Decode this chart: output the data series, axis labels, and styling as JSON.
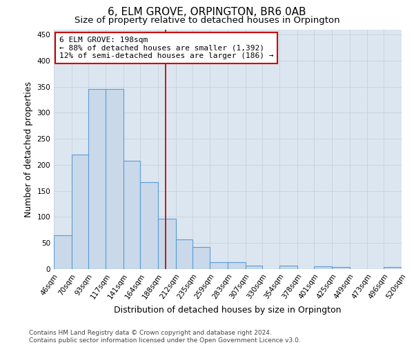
{
  "title": "6, ELM GROVE, ORPINGTON, BR6 0AB",
  "subtitle": "Size of property relative to detached houses in Orpington",
  "xlabel": "Distribution of detached houses by size in Orpington",
  "ylabel": "Number of detached properties",
  "bin_edges": [
    46,
    70,
    93,
    117,
    141,
    164,
    188,
    212,
    235,
    259,
    283,
    307,
    330,
    354,
    378,
    401,
    425,
    449,
    473,
    496,
    520
  ],
  "bar_heights": [
    65,
    220,
    345,
    345,
    208,
    167,
    97,
    57,
    42,
    13,
    13,
    7,
    0,
    7,
    0,
    5,
    4,
    0,
    0,
    4
  ],
  "bar_color": "#c9d9ea",
  "bar_edge_color": "#5b9bd5",
  "bar_edge_width": 0.8,
  "vline_x": 198,
  "vline_color": "#cc0000",
  "annotation_line1": "6 ELM GROVE: 198sqm",
  "annotation_line2": "← 88% of detached houses are smaller (1,392)",
  "annotation_line3": "12% of semi-detached houses are larger (186) →",
  "annotation_box_color": "#cc0000",
  "ylim": [
    0,
    460
  ],
  "yticks": [
    0,
    50,
    100,
    150,
    200,
    250,
    300,
    350,
    400,
    450
  ],
  "grid_color": "#c8d0dc",
  "bg_color": "#dce6f0",
  "footer_line1": "Contains HM Land Registry data © Crown copyright and database right 2024.",
  "footer_line2": "Contains public sector information licensed under the Open Government Licence v3.0.",
  "title_fontsize": 11,
  "subtitle_fontsize": 9.5,
  "axis_label_fontsize": 9,
  "tick_fontsize": 7.5,
  "footer_fontsize": 6.5
}
